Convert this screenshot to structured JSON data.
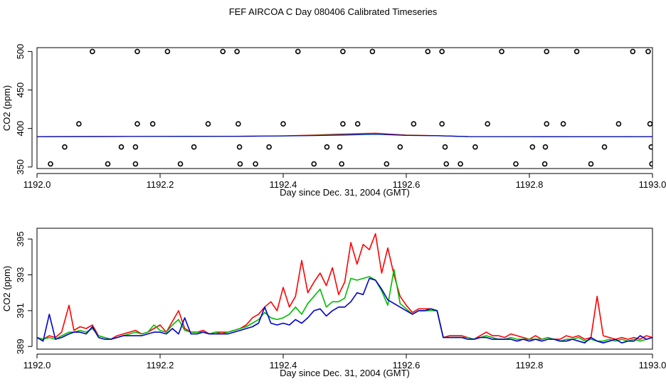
{
  "title": "FEF AIRCOA C  Day 080406  Calibrated Timeseries",
  "chart_data": [
    {
      "type": "scatter",
      "xlabel": "Day since Dec. 31, 2004 (GMT)",
      "ylabel": "CO2 (ppm)",
      "xlim": [
        1192.0,
        1193.0
      ],
      "ylim": [
        348,
        505
      ],
      "xticks": [
        "1192.0",
        "1192.2",
        "1192.4",
        "1192.6",
        "1192.8",
        "1193.0"
      ],
      "yticks": [
        "350",
        "400",
        "450",
        "500"
      ],
      "points": {
        "x": [
          1192.09,
          1192.163,
          1192.212,
          1192.302,
          1192.325,
          1192.424,
          1192.497,
          1192.545,
          1192.635,
          1192.658,
          1192.755,
          1192.828,
          1192.877,
          1192.968,
          1192.993,
          1192.068,
          1192.163,
          1192.188,
          1192.278,
          1192.327,
          1192.4,
          1192.497,
          1192.521,
          1192.612,
          1192.658,
          1192.732,
          1192.828,
          1192.855,
          1192.945,
          1192.996,
          1192.045,
          1192.137,
          1192.16,
          1192.255,
          1192.329,
          1192.377,
          1192.471,
          1192.492,
          1192.59,
          1192.663,
          1192.712,
          1192.805,
          1192.826,
          1192.922,
          1192.998,
          1192.022,
          1192.115,
          1192.16,
          1192.233,
          1192.33,
          1192.355,
          1192.45,
          1192.495,
          1192.568,
          1192.665,
          1192.688,
          1192.778,
          1192.825,
          1192.9,
          1192.999
        ],
        "y": [
          500,
          500,
          500,
          500,
          500,
          500,
          500,
          500,
          500,
          500,
          500,
          500,
          500,
          500,
          500,
          406,
          406,
          406,
          406,
          406,
          406,
          406,
          406,
          406,
          406,
          406,
          406,
          406,
          406,
          406,
          376,
          376,
          376,
          376,
          376,
          376,
          376,
          376,
          376,
          376,
          376,
          376,
          376,
          376,
          376,
          354,
          354,
          354,
          354,
          354,
          354,
          354,
          354,
          354,
          354,
          354,
          354,
          354,
          354,
          354
        ]
      },
      "series": [
        {
          "color": "#ff0000",
          "x": [
            1192.0,
            1192.1,
            1192.2,
            1192.3,
            1192.35,
            1192.4,
            1192.45,
            1192.5,
            1192.55,
            1192.6,
            1192.65,
            1192.7,
            1192.8,
            1192.9,
            1193.0
          ],
          "values": [
            389.5,
            389.6,
            389.7,
            389.8,
            390.0,
            390.5,
            391.5,
            393.0,
            394.0,
            391.5,
            390.8,
            389.6,
            389.4,
            389.5,
            389.5
          ]
        },
        {
          "color": "#00bb00",
          "x": [
            1192.0,
            1192.1,
            1192.2,
            1192.3,
            1192.35,
            1192.4,
            1192.45,
            1192.5,
            1192.55,
            1192.6,
            1192.65,
            1192.7,
            1192.8,
            1192.9,
            1193.0
          ],
          "values": [
            389.5,
            389.6,
            389.7,
            389.8,
            390.0,
            390.3,
            391.0,
            392.0,
            392.8,
            391.2,
            390.7,
            389.6,
            389.4,
            389.4,
            389.5
          ]
        },
        {
          "color": "#0000cc",
          "x": [
            1192.0,
            1192.1,
            1192.2,
            1192.3,
            1192.35,
            1192.4,
            1192.45,
            1192.5,
            1192.55,
            1192.6,
            1192.65,
            1192.7,
            1192.8,
            1192.9,
            1193.0
          ],
          "values": [
            389.5,
            389.6,
            389.7,
            389.8,
            390.0,
            390.3,
            390.8,
            391.5,
            392.5,
            391.0,
            390.6,
            389.5,
            389.4,
            389.3,
            389.5
          ]
        }
      ]
    },
    {
      "type": "line",
      "xlabel": "Day since Dec. 31, 2004 (GMT)",
      "ylabel": "CO2 (ppm)",
      "xlim": [
        1192.0,
        1193.0
      ],
      "ylim": [
        388.85,
        395.6
      ],
      "xticks": [
        "1192.0",
        "1192.2",
        "1192.4",
        "1192.6",
        "1192.8",
        "1193.0"
      ],
      "yticks": [
        "389",
        "391",
        "393",
        "395"
      ],
      "series": [
        {
          "color": "#ff0000",
          "x": [
            1192.0,
            1192.01,
            1192.02,
            1192.03,
            1192.04,
            1192.052,
            1192.06,
            1192.07,
            1192.08,
            1192.09,
            1192.1,
            1192.11,
            1192.12,
            1192.13,
            1192.14,
            1192.15,
            1192.16,
            1192.17,
            1192.18,
            1192.19,
            1192.2,
            1192.21,
            1192.22,
            1192.23,
            1192.24,
            1192.25,
            1192.26,
            1192.27,
            1192.28,
            1192.29,
            1192.3,
            1192.31,
            1192.32,
            1192.33,
            1192.34,
            1192.35,
            1192.36,
            1192.37,
            1192.38,
            1192.39,
            1192.4,
            1192.41,
            1192.42,
            1192.43,
            1192.44,
            1192.45,
            1192.46,
            1192.47,
            1192.48,
            1192.49,
            1192.5,
            1192.51,
            1192.52,
            1192.53,
            1192.54,
            1192.55,
            1192.56,
            1192.57,
            1192.58,
            1192.59,
            1192.6,
            1192.61,
            1192.62,
            1192.63,
            1192.64,
            1192.65,
            1192.66,
            1192.67,
            1192.68,
            1192.69,
            1192.7,
            1192.71,
            1192.72,
            1192.73,
            1192.74,
            1192.75,
            1192.76,
            1192.77,
            1192.78,
            1192.79,
            1192.8,
            1192.81,
            1192.82,
            1192.83,
            1192.84,
            1192.85,
            1192.86,
            1192.87,
            1192.88,
            1192.89,
            1192.9,
            1192.91,
            1192.92,
            1192.93,
            1192.94,
            1192.95,
            1192.96,
            1192.97,
            1192.98,
            1192.99,
            1193.0
          ],
          "values": [
            389.5,
            389.4,
            389.6,
            389.5,
            389.8,
            391.3,
            389.9,
            390.1,
            390.0,
            390.2,
            389.6,
            389.5,
            389.4,
            389.6,
            389.7,
            389.8,
            389.9,
            389.7,
            389.8,
            390.0,
            390.2,
            389.8,
            390.4,
            391.0,
            390.0,
            389.8,
            389.8,
            389.9,
            389.7,
            389.8,
            389.8,
            389.8,
            389.9,
            390.0,
            390.2,
            390.6,
            390.8,
            391.2,
            391.5,
            391.0,
            392.3,
            391.2,
            391.8,
            393.8,
            392.0,
            392.6,
            393.1,
            392.4,
            393.4,
            391.9,
            392.6,
            394.8,
            393.6,
            394.7,
            394.4,
            395.3,
            393.1,
            394.5,
            393.0,
            391.8,
            391.3,
            390.9,
            391.1,
            391.1,
            391.1,
            391.0,
            389.5,
            389.6,
            389.6,
            389.6,
            389.5,
            389.4,
            389.6,
            389.8,
            389.6,
            389.6,
            389.5,
            389.7,
            389.6,
            389.5,
            389.4,
            389.6,
            389.4,
            389.5,
            389.4,
            389.4,
            389.6,
            389.5,
            389.6,
            389.4,
            389.5,
            391.8,
            389.6,
            389.5,
            389.4,
            389.5,
            389.4,
            389.5,
            389.4,
            389.6,
            389.5
          ]
        },
        {
          "color": "#00bb00",
          "x": [
            1192.0,
            1192.01,
            1192.02,
            1192.03,
            1192.04,
            1192.052,
            1192.06,
            1192.07,
            1192.08,
            1192.09,
            1192.1,
            1192.11,
            1192.12,
            1192.13,
            1192.14,
            1192.15,
            1192.16,
            1192.17,
            1192.18,
            1192.19,
            1192.2,
            1192.21,
            1192.22,
            1192.23,
            1192.24,
            1192.25,
            1192.26,
            1192.27,
            1192.28,
            1192.29,
            1192.3,
            1192.31,
            1192.32,
            1192.33,
            1192.34,
            1192.35,
            1192.36,
            1192.37,
            1192.38,
            1192.39,
            1192.4,
            1192.41,
            1192.42,
            1192.43,
            1192.44,
            1192.45,
            1192.46,
            1192.47,
            1192.48,
            1192.49,
            1192.5,
            1192.51,
            1192.52,
            1192.53,
            1192.54,
            1192.55,
            1192.56,
            1192.57,
            1192.58,
            1192.59,
            1192.6,
            1192.61,
            1192.62,
            1192.63,
            1192.64,
            1192.65,
            1192.66,
            1192.67,
            1192.68,
            1192.69,
            1192.7,
            1192.71,
            1192.72,
            1192.73,
            1192.74,
            1192.75,
            1192.76,
            1192.77,
            1192.78,
            1192.79,
            1192.8,
            1192.81,
            1192.82,
            1192.83,
            1192.84,
            1192.85,
            1192.86,
            1192.87,
            1192.88,
            1192.89,
            1192.9,
            1192.91,
            1192.92,
            1192.93,
            1192.94,
            1192.95,
            1192.96,
            1192.97,
            1192.98,
            1192.99,
            1193.0
          ],
          "values": [
            389.5,
            389.4,
            389.5,
            389.4,
            389.6,
            389.8,
            389.8,
            389.9,
            389.8,
            390.0,
            389.6,
            389.5,
            389.4,
            389.5,
            389.6,
            389.7,
            389.8,
            389.7,
            389.8,
            390.2,
            389.9,
            389.8,
            390.2,
            390.5,
            389.9,
            389.8,
            389.8,
            389.8,
            389.7,
            389.8,
            389.7,
            389.8,
            389.9,
            390.0,
            390.1,
            390.3,
            390.5,
            390.9,
            390.6,
            390.5,
            390.6,
            390.8,
            391.2,
            390.8,
            391.4,
            391.8,
            392.2,
            391.2,
            391.5,
            391.5,
            391.7,
            392.8,
            392.7,
            392.8,
            392.9,
            392.7,
            392.1,
            391.3,
            393.3,
            391.4,
            391.1,
            390.8,
            391.0,
            391.0,
            391.0,
            391.0,
            389.5,
            389.5,
            389.5,
            389.5,
            389.5,
            389.4,
            389.5,
            389.6,
            389.5,
            389.4,
            389.4,
            389.5,
            389.4,
            389.4,
            389.4,
            389.4,
            389.4,
            389.5,
            389.4,
            389.3,
            389.4,
            389.4,
            389.5,
            389.3,
            389.4,
            389.3,
            389.3,
            389.4,
            389.3,
            389.4,
            389.3,
            389.4,
            389.3,
            389.4,
            389.5
          ]
        },
        {
          "color": "#0000cc",
          "x": [
            1192.0,
            1192.01,
            1192.02,
            1192.03,
            1192.04,
            1192.052,
            1192.06,
            1192.07,
            1192.08,
            1192.09,
            1192.1,
            1192.11,
            1192.12,
            1192.13,
            1192.14,
            1192.15,
            1192.16,
            1192.17,
            1192.18,
            1192.19,
            1192.2,
            1192.21,
            1192.22,
            1192.23,
            1192.24,
            1192.25,
            1192.26,
            1192.27,
            1192.28,
            1192.29,
            1192.3,
            1192.31,
            1192.32,
            1192.33,
            1192.34,
            1192.35,
            1192.36,
            1192.37,
            1192.38,
            1192.39,
            1192.4,
            1192.41,
            1192.42,
            1192.43,
            1192.44,
            1192.45,
            1192.46,
            1192.47,
            1192.48,
            1192.49,
            1192.5,
            1192.51,
            1192.52,
            1192.53,
            1192.54,
            1192.55,
            1192.56,
            1192.57,
            1192.58,
            1192.59,
            1192.6,
            1192.61,
            1192.62,
            1192.63,
            1192.64,
            1192.65,
            1192.66,
            1192.67,
            1192.68,
            1192.69,
            1192.7,
            1192.71,
            1192.72,
            1192.73,
            1192.74,
            1192.75,
            1192.76,
            1192.77,
            1192.78,
            1192.79,
            1192.8,
            1192.81,
            1192.82,
            1192.83,
            1192.84,
            1192.85,
            1192.86,
            1192.87,
            1192.88,
            1192.89,
            1192.9,
            1192.91,
            1192.92,
            1192.93,
            1192.94,
            1192.95,
            1192.96,
            1192.97,
            1192.98,
            1192.99,
            1193.0
          ],
          "values": [
            389.5,
            389.3,
            390.8,
            389.4,
            389.5,
            389.7,
            389.8,
            389.8,
            389.7,
            390.1,
            389.5,
            389.4,
            389.4,
            389.5,
            389.6,
            389.6,
            389.6,
            389.6,
            389.7,
            389.8,
            389.8,
            389.7,
            390.0,
            389.7,
            390.6,
            389.7,
            389.7,
            389.8,
            389.7,
            389.7,
            389.7,
            389.7,
            389.8,
            389.9,
            390.0,
            390.1,
            390.3,
            391.2,
            390.3,
            390.2,
            390.3,
            390.2,
            390.5,
            390.3,
            390.6,
            391.0,
            391.1,
            390.7,
            391.0,
            391.2,
            391.2,
            391.5,
            392.0,
            391.9,
            392.8,
            392.7,
            392.2,
            391.6,
            391.4,
            391.2,
            391.0,
            390.8,
            391.0,
            391.0,
            391.1,
            391.0,
            389.5,
            389.5,
            389.5,
            389.5,
            389.4,
            389.4,
            389.5,
            389.5,
            389.4,
            389.4,
            389.4,
            389.4,
            389.3,
            389.4,
            389.3,
            389.4,
            389.3,
            389.4,
            389.4,
            389.3,
            389.3,
            389.4,
            389.3,
            389.2,
            389.5,
            389.3,
            389.2,
            389.3,
            389.4,
            389.2,
            389.3,
            389.3,
            389.6,
            389.4,
            389.5
          ]
        }
      ]
    }
  ]
}
